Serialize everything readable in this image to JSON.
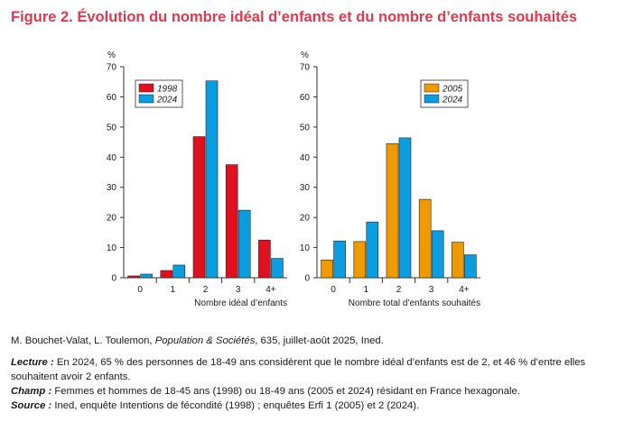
{
  "figure": {
    "title": "Figure 2. Évolution du nombre idéal d’enfants et du nombre d’enfants souhaités"
  },
  "colors": {
    "title": "#e2384d",
    "red": "#e0101e",
    "blue": "#0a9ee0",
    "orange": "#f19a00",
    "axis": "#333333"
  },
  "chart_data": [
    {
      "type": "bar",
      "title": "",
      "ylabel": "%",
      "xlabel": "Nombre idéal d’enfants",
      "ylim": [
        0,
        70
      ],
      "yticks": [
        "0",
        "10",
        "20",
        "30",
        "40",
        "50",
        "60",
        "70"
      ],
      "categories": [
        "0",
        "1",
        "2",
        "3",
        "4+"
      ],
      "legend_position": "top-left",
      "series": [
        {
          "name": "1998",
          "color": "#e0101e",
          "values": [
            0.6,
            2.4,
            46.8,
            37.5,
            12.5
          ]
        },
        {
          "name": "2024",
          "color": "#0a9ee0",
          "values": [
            1.2,
            4.2,
            65.3,
            22.4,
            6.4
          ]
        }
      ]
    },
    {
      "type": "bar",
      "title": "",
      "ylabel": "%",
      "xlabel": "Nombre total d’enfants souhaités",
      "ylim": [
        0,
        70
      ],
      "yticks": [
        "0",
        "10",
        "20",
        "30",
        "40",
        "50",
        "60",
        "70"
      ],
      "categories": [
        "0",
        "1",
        "2",
        "3",
        "4+"
      ],
      "legend_position": "top-right",
      "series": [
        {
          "name": "2005",
          "color": "#f19a00",
          "values": [
            5.9,
            12.0,
            44.5,
            26.0,
            11.8
          ]
        },
        {
          "name": "2024",
          "color": "#0a9ee0",
          "values": [
            12.2,
            18.5,
            46.4,
            15.6,
            7.6
          ]
        }
      ]
    }
  ],
  "footer": {
    "citation_pre": "M. Bouchet-Valat, L. Toulemon, ",
    "citation_journal": "Population & Sociétés",
    "citation_post": ", 635, juillet-août 2025, Ined.",
    "lecture_label": "Lecture :",
    "lecture_text": " En 2024, 65 % des personnes de 18-49 ans considèrent que le nombre idéal d’enfants est de 2, et 46 % d’entre elles souhaitent avoir 2 enfants.",
    "champ_label": "Champ :",
    "champ_text": " Femmes et hommes de 18-45 ans (1998) ou 18-49 ans (2005 et 2024) résidant en France hexagonale.",
    "source_label": "Source :",
    "source_text": " Ined, enquête Intentions de fécondité (1998) ; enquêtes Erfi 1 (2005) et 2 (2024)."
  }
}
